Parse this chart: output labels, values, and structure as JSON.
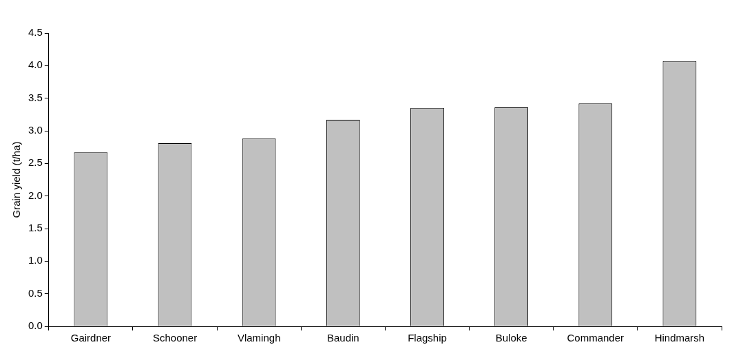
{
  "chart_data": {
    "type": "bar",
    "ylabel": "Grain yield (t/ha)",
    "categories": [
      "Gairdner",
      "Schooner",
      "Vlamingh",
      "Baudin",
      "Flagship",
      "Buloke",
      "Commander",
      "Hindmarsh"
    ],
    "values": [
      2.67,
      2.81,
      2.88,
      3.17,
      3.35,
      3.36,
      3.42,
      4.07
    ],
    "color": "#c0c0c0",
    "ylim": [
      0,
      4.5
    ],
    "yticks": [
      {
        "value": 0,
        "label": "0.0"
      },
      0.5,
      {
        "value": 1,
        "label": "1.0"
      },
      1.5,
      {
        "value": 2,
        "label": "2.0"
      },
      2.5,
      {
        "value": 3,
        "label": "3.0"
      },
      3.5,
      {
        "value": 4,
        "label": "4.0"
      },
      4.5
    ],
    "grid": false
  }
}
